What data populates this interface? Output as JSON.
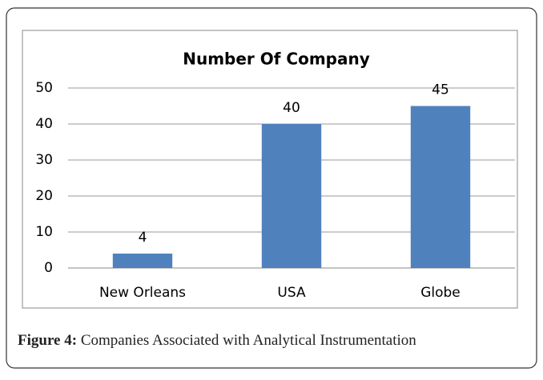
{
  "chart_data": {
    "type": "bar",
    "title": "Number Of Company",
    "categories": [
      "New Orleans",
      "USA",
      "Globe"
    ],
    "values": [
      4,
      40,
      45
    ],
    "color": "#4f81bd",
    "ylim": [
      0,
      50
    ],
    "yticks": [
      0,
      10,
      20,
      30,
      40,
      50
    ],
    "grid": true
  },
  "figure": {
    "label": "Figure 4:",
    "caption": "Companies Associated with Analytical Instrumentation"
  }
}
